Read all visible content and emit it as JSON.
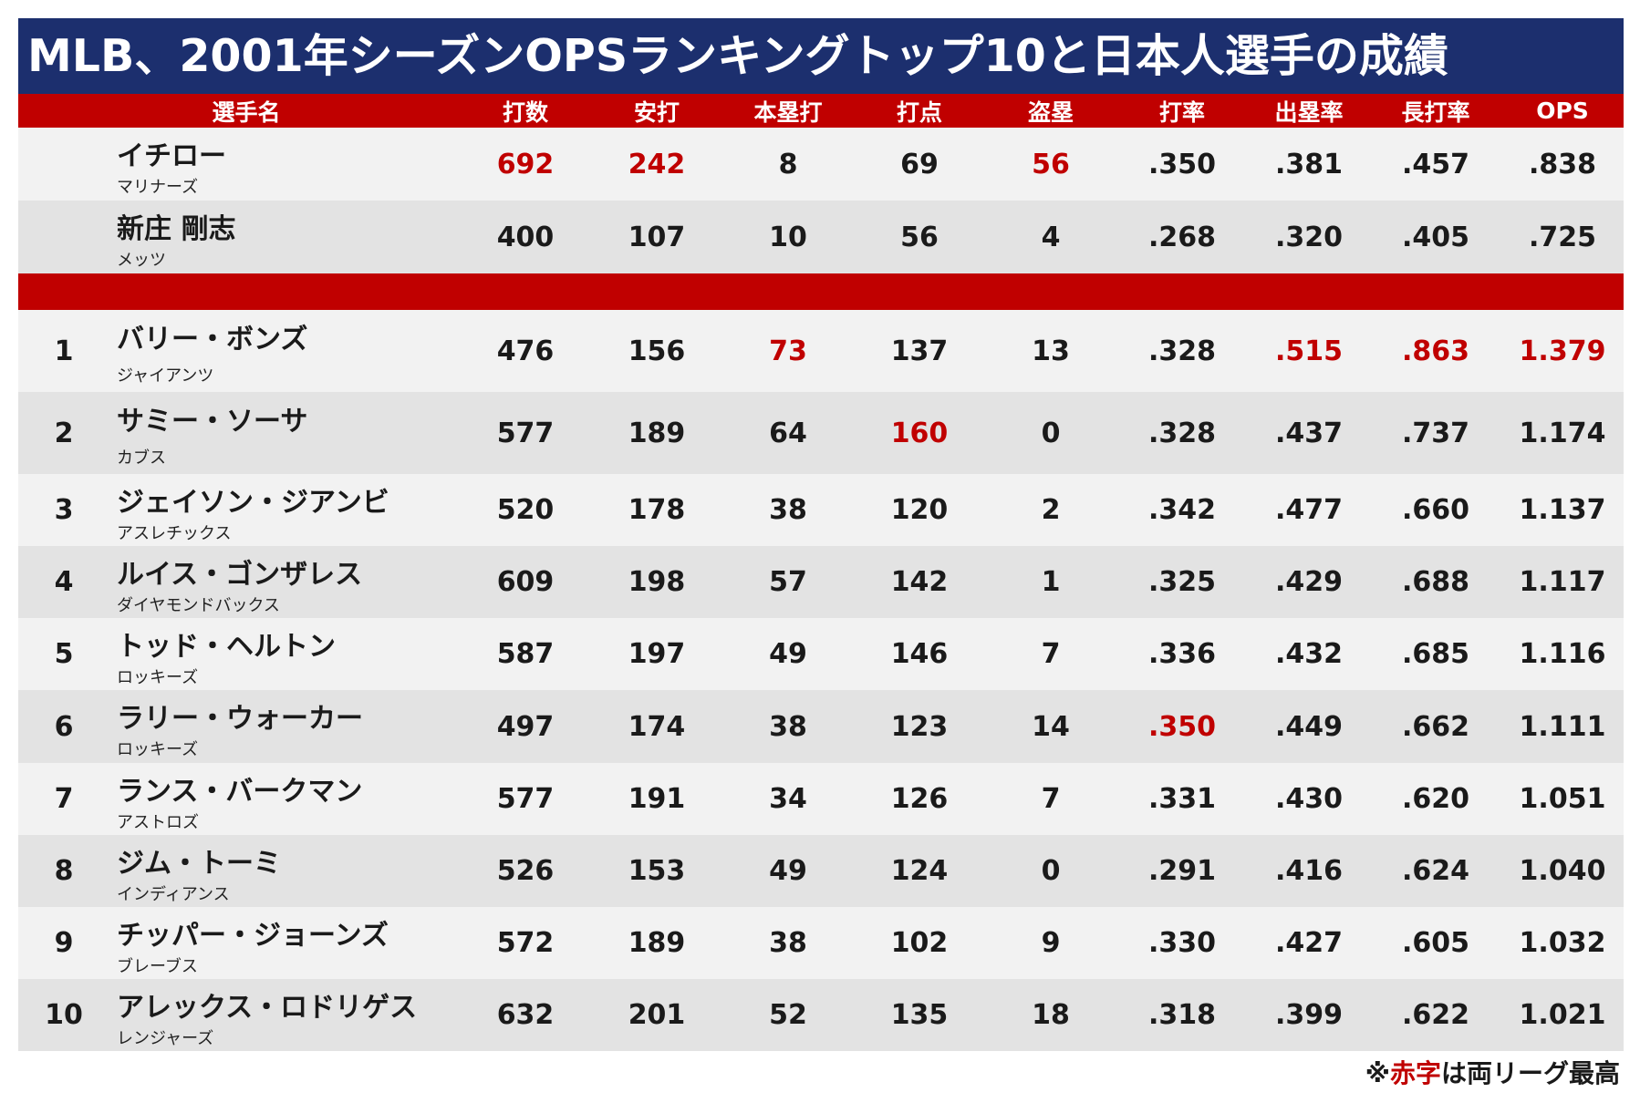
{
  "title": "MLB、2001年シーズンOPSランキングトップ10と日本人選手の成績",
  "headers": [
    "選手名",
    "打数",
    "安打",
    "本塁打",
    "打点",
    "盗塁",
    "打率",
    "出塁率",
    "長打率",
    "OPS"
  ],
  "japanese_players": [
    {
      "rank": "",
      "name": "イチロー",
      "team": "マリナーズ",
      "ab": "692",
      "h": "242",
      "hr": "8",
      "rbi": "69",
      "sb": "56",
      "avg": ".350",
      "obp": ".381",
      "slg": ".457",
      "ops": ".838",
      "red": [
        "ab",
        "h",
        "sb"
      ]
    },
    {
      "rank": "",
      "name": "新庄 剛志",
      "team": "メッツ",
      "ab": "400",
      "h": "107",
      "hr": "10",
      "rbi": "56",
      "sb": "4",
      "avg": ".268",
      "obp": ".320",
      "slg": ".405",
      "ops": ".725",
      "red": []
    }
  ],
  "ranking": [
    {
      "rank": "1",
      "name": "バリー・ボンズ",
      "team": "ジャイアンツ",
      "ab": "476",
      "h": "156",
      "hr": "73",
      "rbi": "137",
      "sb": "13",
      "avg": ".328",
      "obp": ".515",
      "slg": ".863",
      "ops": "1.379",
      "red": [
        "hr",
        "obp",
        "slg",
        "ops"
      ]
    },
    {
      "rank": "2",
      "name": "サミー・ソーサ",
      "team": "カブス",
      "ab": "577",
      "h": "189",
      "hr": "64",
      "rbi": "160",
      "sb": "0",
      "avg": ".328",
      "obp": ".437",
      "slg": ".737",
      "ops": "1.174",
      "red": [
        "rbi"
      ]
    },
    {
      "rank": "3",
      "name": "ジェイソン・ジアンビ",
      "team": "アスレチックス",
      "ab": "520",
      "h": "178",
      "hr": "38",
      "rbi": "120",
      "sb": "2",
      "avg": ".342",
      "obp": ".477",
      "slg": ".660",
      "ops": "1.137",
      "red": []
    },
    {
      "rank": "4",
      "name": "ルイス・ゴンザレス",
      "team": "ダイヤモンドバックス",
      "ab": "609",
      "h": "198",
      "hr": "57",
      "rbi": "142",
      "sb": "1",
      "avg": ".325",
      "obp": ".429",
      "slg": ".688",
      "ops": "1.117",
      "red": []
    },
    {
      "rank": "5",
      "name": "トッド・ヘルトン",
      "team": "ロッキーズ",
      "ab": "587",
      "h": "197",
      "hr": "49",
      "rbi": "146",
      "sb": "7",
      "avg": ".336",
      "obp": ".432",
      "slg": ".685",
      "ops": "1.116",
      "red": []
    },
    {
      "rank": "6",
      "name": "ラリー・ウォーカー",
      "team": "ロッキーズ",
      "ab": "497",
      "h": "174",
      "hr": "38",
      "rbi": "123",
      "sb": "14",
      "avg": ".350",
      "obp": ".449",
      "slg": ".662",
      "ops": "1.111",
      "red": [
        "avg"
      ]
    },
    {
      "rank": "7",
      "name": "ランス・バークマン",
      "team": "アストロズ",
      "ab": "577",
      "h": "191",
      "hr": "34",
      "rbi": "126",
      "sb": "7",
      "avg": ".331",
      "obp": ".430",
      "slg": ".620",
      "ops": "1.051",
      "red": []
    },
    {
      "rank": "8",
      "name": "ジム・トーミ",
      "team": "インディアンス",
      "ab": "526",
      "h": "153",
      "hr": "49",
      "rbi": "124",
      "sb": "0",
      "avg": ".291",
      "obp": ".416",
      "slg": ".624",
      "ops": "1.040",
      "red": []
    },
    {
      "rank": "9",
      "name": "チッパー・ジョーンズ",
      "team": "ブレーブス",
      "ab": "572",
      "h": "189",
      "hr": "38",
      "rbi": "102",
      "sb": "9",
      "avg": ".330",
      "obp": ".427",
      "slg": ".605",
      "ops": "1.032",
      "red": []
    },
    {
      "rank": "10",
      "name": "アレックス・ロドリゲス",
      "team": "レンジャーズ",
      "ab": "632",
      "h": "201",
      "hr": "52",
      "rbi": "135",
      "sb": "18",
      "avg": ".318",
      "obp": ".399",
      "slg": ".622",
      "ops": "1.021",
      "red": []
    }
  ],
  "note": {
    "prefix": "※",
    "red": "赤字",
    "suffix": "は両リーグ最高"
  },
  "colors": {
    "title_bg": "#1c2f6e",
    "accent_red": "#c00000",
    "row_light": "#f2f2f2",
    "row_dark": "#e3e3e3"
  }
}
